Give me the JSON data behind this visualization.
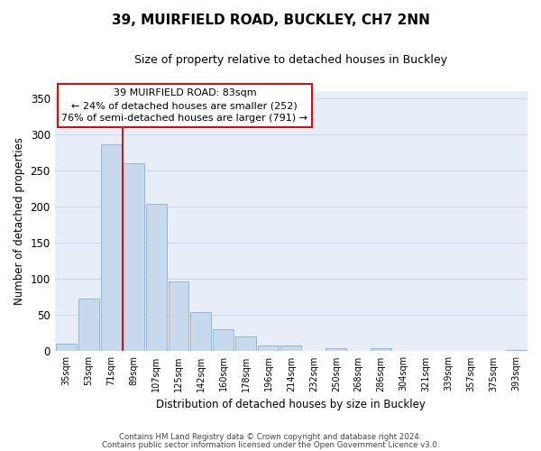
{
  "title": "39, MUIRFIELD ROAD, BUCKLEY, CH7 2NN",
  "subtitle": "Size of property relative to detached houses in Buckley",
  "xlabel": "Distribution of detached houses by size in Buckley",
  "ylabel": "Number of detached properties",
  "footnote1": "Contains HM Land Registry data © Crown copyright and database right 2024.",
  "footnote2": "Contains public sector information licensed under the Open Government Licence v3.0.",
  "bar_labels": [
    "35sqm",
    "53sqm",
    "71sqm",
    "89sqm",
    "107sqm",
    "125sqm",
    "142sqm",
    "160sqm",
    "178sqm",
    "196sqm",
    "214sqm",
    "232sqm",
    "250sqm",
    "268sqm",
    "286sqm",
    "304sqm",
    "321sqm",
    "339sqm",
    "357sqm",
    "375sqm",
    "393sqm"
  ],
  "bar_values": [
    10,
    73,
    286,
    260,
    204,
    96,
    54,
    31,
    21,
    8,
    8,
    0,
    4,
    0,
    4,
    0,
    0,
    0,
    0,
    0,
    2
  ],
  "bar_color": "#c8d9ed",
  "bar_edge_color": "#8ab0d0",
  "ylim": [
    0,
    360
  ],
  "yticks": [
    0,
    50,
    100,
    150,
    200,
    250,
    300,
    350
  ],
  "annotation_title": "39 MUIRFIELD ROAD: 83sqm",
  "annotation_line1": "← 24% of detached houses are smaller (252)",
  "annotation_line2": "76% of semi-detached houses are larger (791) →",
  "vline_color": "#aa0000",
  "vline_x_bar": 2.5,
  "grid_color": "#c8d4e8",
  "background_color": "#e8eef8",
  "title_fontsize": 11,
  "subtitle_fontsize": 9
}
